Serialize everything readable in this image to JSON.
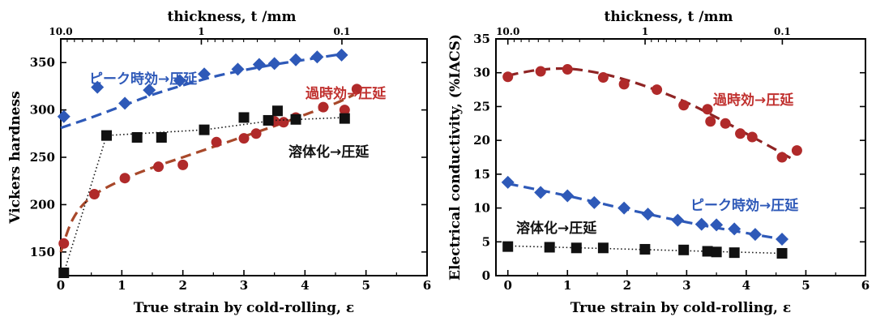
{
  "chart_data": [
    {
      "type": "scatter",
      "xlabel": "True strain by cold-rolling, ε",
      "ylabel": "Vickers hardness",
      "x2label": "thickness, t /mm",
      "xlim": [
        0,
        6
      ],
      "ylim": [
        125,
        375
      ],
      "xticks": [
        0,
        1,
        2,
        3,
        4,
        5,
        6
      ],
      "yticks": [
        150,
        200,
        250,
        300,
        350
      ],
      "x2ticks": [
        {
          "label": "10.0",
          "strain": 0
        },
        {
          "label": "1",
          "strain": 2.3026
        },
        {
          "label": "0.1",
          "strain": 4.6052
        }
      ],
      "series": [
        {
          "name": "ピーク時効→圧延",
          "color": "#2e59b8",
          "marker": "diamond",
          "line": "dash",
          "points": [
            [
              0.05,
              293
            ],
            [
              0.6,
              324
            ],
            [
              1.05,
              307
            ],
            [
              1.45,
              321
            ],
            [
              1.95,
              331
            ],
            [
              2.35,
              338
            ],
            [
              2.9,
              343
            ],
            [
              3.25,
              348
            ],
            [
              3.5,
              349
            ],
            [
              3.85,
              353
            ],
            [
              4.2,
              356
            ],
            [
              4.6,
              358
            ]
          ],
          "fit": [
            [
              0.0,
              281
            ],
            [
              0.5,
              292
            ],
            [
              1.0,
              304
            ],
            [
              1.5,
              316
            ],
            [
              2.0,
              326
            ],
            [
              2.5,
              335
            ],
            [
              3.0,
              342
            ],
            [
              3.5,
              348
            ],
            [
              4.0,
              353
            ],
            [
              4.6,
              359
            ]
          ]
        },
        {
          "name": "過時効→圧延",
          "color": "#b02a2a",
          "fit_color": "#a8482a",
          "marker": "circle",
          "line": "dash",
          "points": [
            [
              0.05,
              159
            ],
            [
              0.55,
              211
            ],
            [
              1.05,
              228
            ],
            [
              1.6,
              240
            ],
            [
              2.0,
              242
            ],
            [
              2.55,
              266
            ],
            [
              3.0,
              270
            ],
            [
              3.2,
              275
            ],
            [
              3.5,
              288
            ],
            [
              3.65,
              287
            ],
            [
              3.85,
              292
            ],
            [
              4.3,
              303
            ],
            [
              4.65,
              300
            ],
            [
              4.85,
              322
            ]
          ],
          "fit": [
            [
              0.0,
              150
            ],
            [
              0.2,
              185
            ],
            [
              0.5,
              208
            ],
            [
              1.0,
              226
            ],
            [
              1.5,
              239
            ],
            [
              2.0,
              250
            ],
            [
              2.5,
              261
            ],
            [
              3.0,
              272
            ],
            [
              3.5,
              283
            ],
            [
              4.0,
              295
            ],
            [
              4.5,
              307
            ],
            [
              4.8,
              316
            ]
          ]
        },
        {
          "name": "溶体化→圧延",
          "color": "#111111",
          "marker": "square",
          "line": "dot",
          "points": [
            [
              0.05,
              128
            ],
            [
              0.75,
              273
            ],
            [
              1.25,
              271
            ],
            [
              1.65,
              271
            ],
            [
              2.35,
              279
            ],
            [
              3.0,
              292
            ],
            [
              3.4,
              289
            ],
            [
              3.55,
              299
            ],
            [
              3.85,
              290
            ],
            [
              4.65,
              291
            ]
          ],
          "fit": [
            [
              0.05,
              128
            ],
            [
              0.75,
              273
            ],
            [
              2.35,
              279
            ],
            [
              3.5,
              289
            ],
            [
              4.65,
              292
            ]
          ]
        }
      ],
      "annotations": [
        {
          "text": "ピーク時効→圧延",
          "color": "#2e59b8"
        },
        {
          "text": "過時効→圧延",
          "color": "#c0302e"
        },
        {
          "text": "溶体化→圧延",
          "color": "#111111"
        }
      ]
    },
    {
      "type": "scatter",
      "xlabel": "True strain by cold-rolling, ε",
      "ylabel": "Electrical conductivity, (%IACS)",
      "x2label": "thickness, t /mm",
      "xlim": [
        -0.2,
        6
      ],
      "ylim": [
        0,
        35
      ],
      "xticks": [
        0,
        1,
        2,
        3,
        4,
        5,
        6
      ],
      "yticks": [
        0,
        5,
        10,
        15,
        20,
        25,
        30,
        35
      ],
      "x2ticks": [
        {
          "label": "10.0",
          "strain": 0
        },
        {
          "label": "1",
          "strain": 2.3026
        },
        {
          "label": "0.1",
          "strain": 4.6052
        }
      ],
      "series": [
        {
          "name": "過時効→圧延",
          "color": "#b02a2a",
          "fit_color": "#8f2424",
          "marker": "circle",
          "line": "dash",
          "points": [
            [
              0.0,
              29.4
            ],
            [
              0.55,
              30.2
            ],
            [
              1.0,
              30.5
            ],
            [
              1.6,
              29.3
            ],
            [
              1.95,
              28.3
            ],
            [
              2.5,
              27.5
            ],
            [
              2.95,
              25.2
            ],
            [
              3.35,
              24.6
            ],
            [
              3.4,
              22.8
            ],
            [
              3.65,
              22.5
            ],
            [
              3.9,
              21.0
            ],
            [
              4.1,
              20.5
            ],
            [
              4.6,
              17.5
            ],
            [
              4.85,
              18.5
            ]
          ],
          "fit": [
            [
              0.0,
              29.6
            ],
            [
              0.5,
              30.4
            ],
            [
              1.0,
              30.6
            ],
            [
              1.5,
              30.0
            ],
            [
              2.0,
              28.9
            ],
            [
              2.5,
              27.4
            ],
            [
              3.0,
              25.6
            ],
            [
              3.5,
              23.4
            ],
            [
              4.0,
              21.0
            ],
            [
              4.5,
              18.6
            ],
            [
              4.8,
              17.1
            ]
          ]
        },
        {
          "name": "ピーク時効→圧延",
          "color": "#2e59b8",
          "marker": "diamond",
          "line": "dash",
          "points": [
            [
              0.0,
              13.8
            ],
            [
              0.55,
              12.3
            ],
            [
              1.0,
              11.8
            ],
            [
              1.45,
              10.8
            ],
            [
              1.95,
              10.0
            ],
            [
              2.35,
              9.1
            ],
            [
              2.85,
              8.2
            ],
            [
              3.25,
              7.6
            ],
            [
              3.5,
              7.5
            ],
            [
              3.8,
              6.9
            ],
            [
              4.15,
              6.1
            ],
            [
              4.6,
              5.4
            ]
          ],
          "fit": [
            [
              0.0,
              13.6
            ],
            [
              1.0,
              11.8
            ],
            [
              2.0,
              9.8
            ],
            [
              3.0,
              7.9
            ],
            [
              4.0,
              6.3
            ],
            [
              4.6,
              5.4
            ]
          ]
        },
        {
          "name": "溶体化→圧延",
          "color": "#111111",
          "marker": "square",
          "line": "dot",
          "points": [
            [
              0.0,
              4.3
            ],
            [
              0.7,
              4.2
            ],
            [
              1.15,
              4.1
            ],
            [
              1.6,
              4.1
            ],
            [
              2.3,
              3.9
            ],
            [
              2.95,
              3.8
            ],
            [
              3.35,
              3.6
            ],
            [
              3.5,
              3.5
            ],
            [
              3.8,
              3.4
            ],
            [
              4.6,
              3.3
            ]
          ],
          "fit": [
            [
              0.0,
              4.4
            ],
            [
              4.6,
              3.3
            ]
          ]
        }
      ],
      "annotations": [
        {
          "text": "過時効→圧延",
          "color": "#c0302e"
        },
        {
          "text": "ピーク時効→圧延",
          "color": "#2e59b8"
        },
        {
          "text": "溶体化→圧延",
          "color": "#111111"
        }
      ]
    }
  ]
}
